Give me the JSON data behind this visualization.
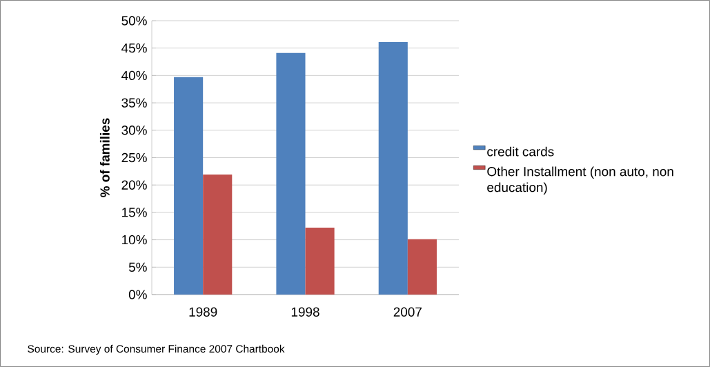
{
  "chart_data": {
    "type": "bar",
    "ylabel": "% of families",
    "categories": [
      "1989",
      "1998",
      "2007"
    ],
    "series": [
      {
        "name": "credit cards",
        "color": "#4f81bd",
        "values": [
          39.7,
          44.1,
          46.1
        ]
      },
      {
        "name": "Other Installment (non auto, non education)",
        "color": "#c0504d",
        "values": [
          21.9,
          12.2,
          10.1
        ]
      }
    ],
    "ylim": [
      0,
      50
    ],
    "yticks": [
      {
        "value": 0,
        "label": "0%"
      },
      {
        "value": 5,
        "label": "5%"
      },
      {
        "value": 10,
        "label": "10%"
      },
      {
        "value": 15,
        "label": "15%"
      },
      {
        "value": 20,
        "label": "20%"
      },
      {
        "value": 25,
        "label": "25%"
      },
      {
        "value": 30,
        "label": "30%"
      },
      {
        "value": 35,
        "label": "35%"
      },
      {
        "value": 40,
        "label": "40%"
      },
      {
        "value": 45,
        "label": "45%"
      },
      {
        "value": 50,
        "label": "50%"
      }
    ],
    "grid": "y",
    "legend": "right",
    "annotations": [
      "Source: Survey of Consumer Finance 2007 Chartbook"
    ]
  }
}
